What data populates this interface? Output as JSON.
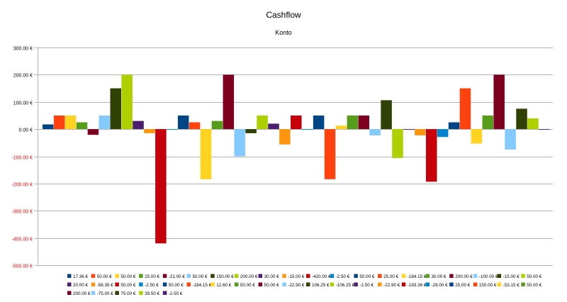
{
  "chart_data": {
    "type": "bar",
    "title": "Cashflow",
    "subtitle": "Konto",
    "ylim": [
      -500,
      300
    ],
    "yticks": [
      "300.00 €",
      "200.00 €",
      "100.00 €",
      "0.00 €",
      "-100.00 €",
      "-200.00 €",
      "-300.00 €",
      "-400.00 €",
      "-500.00 €"
    ],
    "ytick_values": [
      300,
      200,
      100,
      0,
      -100,
      -200,
      -300,
      -400,
      -500
    ],
    "negative_tick_color": "#ff0000",
    "grid": true,
    "legend_position": "bottom",
    "series": [
      {
        "name": "17.36 €",
        "value": 17.36,
        "color": "#004586"
      },
      {
        "name": "50.00 €",
        "value": 50.0,
        "color": "#ff420e"
      },
      {
        "name": "50.00 €",
        "value": 50.0,
        "color": "#ffd320"
      },
      {
        "name": "25.00 €",
        "value": 25.0,
        "color": "#579d1c"
      },
      {
        "name": "-21.00 €",
        "value": -21.0,
        "color": "#7e0021"
      },
      {
        "name": "50.00 €",
        "value": 50.0,
        "color": "#83caff"
      },
      {
        "name": "150.00 €",
        "value": 150.0,
        "color": "#314004"
      },
      {
        "name": "200.00 €",
        "value": 200.0,
        "color": "#aecf00"
      },
      {
        "name": "30.00 €",
        "value": 30.0,
        "color": "#4b1f6f"
      },
      {
        "name": "-15.00 €",
        "value": -15.0,
        "color": "#ff950e"
      },
      {
        "name": "-420.00 €",
        "value": -420.0,
        "color": "#c5000b"
      },
      {
        "name": "-2.50 €",
        "value": -2.5,
        "color": "#0084d1"
      },
      {
        "name": "50.00 €",
        "value": 50.0,
        "color": "#004586"
      },
      {
        "name": "25.00 €",
        "value": 25.0,
        "color": "#ff420e"
      },
      {
        "name": "-184.15 €",
        "value": -184.15,
        "color": "#ffd320"
      },
      {
        "name": "30.00 €",
        "value": 30.0,
        "color": "#579d1c"
      },
      {
        "name": "200.00 €",
        "value": 200.0,
        "color": "#7e0021"
      },
      {
        "name": "-100.00 €",
        "value": -100.0,
        "color": "#83caff"
      },
      {
        "name": "-15.00 €",
        "value": -15.0,
        "color": "#314004"
      },
      {
        "name": "50.00 €",
        "value": 50.0,
        "color": "#aecf00"
      },
      {
        "name": "20.00 €",
        "value": 20.0,
        "color": "#4b1f6f"
      },
      {
        "name": "-56.35 €",
        "value": -56.35,
        "color": "#ff950e"
      },
      {
        "name": "50.00 €",
        "value": 50.0,
        "color": "#c5000b"
      },
      {
        "name": "-2.50 €",
        "value": -2.5,
        "color": "#0084d1"
      },
      {
        "name": "50.00 €",
        "value": 50.0,
        "color": "#004586"
      },
      {
        "name": "-184.15 €",
        "value": -184.15,
        "color": "#ff420e"
      },
      {
        "name": "12.60 €",
        "value": 12.6,
        "color": "#ffd320"
      },
      {
        "name": "50.00 €",
        "value": 50.0,
        "color": "#579d1c"
      },
      {
        "name": "50.00 €",
        "value": 50.0,
        "color": "#7e0021"
      },
      {
        "name": "-22.90 €",
        "value": -22.9,
        "color": "#83caff"
      },
      {
        "name": "106.25 €",
        "value": 106.25,
        "color": "#314004"
      },
      {
        "name": "-106.25 €",
        "value": -106.25,
        "color": "#aecf00"
      },
      {
        "name": "-2.50 €",
        "value": -2.5,
        "color": "#4b1f6f"
      },
      {
        "name": "-22.90 €",
        "value": -22.9,
        "color": "#ff950e"
      },
      {
        "name": "-193.36 €",
        "value": -193.36,
        "color": "#c5000b"
      },
      {
        "name": "-29.00 €",
        "value": -29.0,
        "color": "#0084d1"
      },
      {
        "name": "25.00 €",
        "value": 25.0,
        "color": "#004586"
      },
      {
        "name": "150.00 €",
        "value": 150.0,
        "color": "#ff420e"
      },
      {
        "name": "-53.15 €",
        "value": -53.15,
        "color": "#ffd320"
      },
      {
        "name": "50.00 €",
        "value": 50.0,
        "color": "#579d1c"
      },
      {
        "name": "200.00 €",
        "value": 200.0,
        "color": "#7e0021"
      },
      {
        "name": "-75.00 €",
        "value": -75.0,
        "color": "#83caff"
      },
      {
        "name": "75.00 €",
        "value": 75.0,
        "color": "#314004"
      },
      {
        "name": "39.50 €",
        "value": 39.5,
        "color": "#aecf00"
      },
      {
        "name": "-2.50 €",
        "value": -2.5,
        "color": "#4b1f6f"
      }
    ]
  }
}
